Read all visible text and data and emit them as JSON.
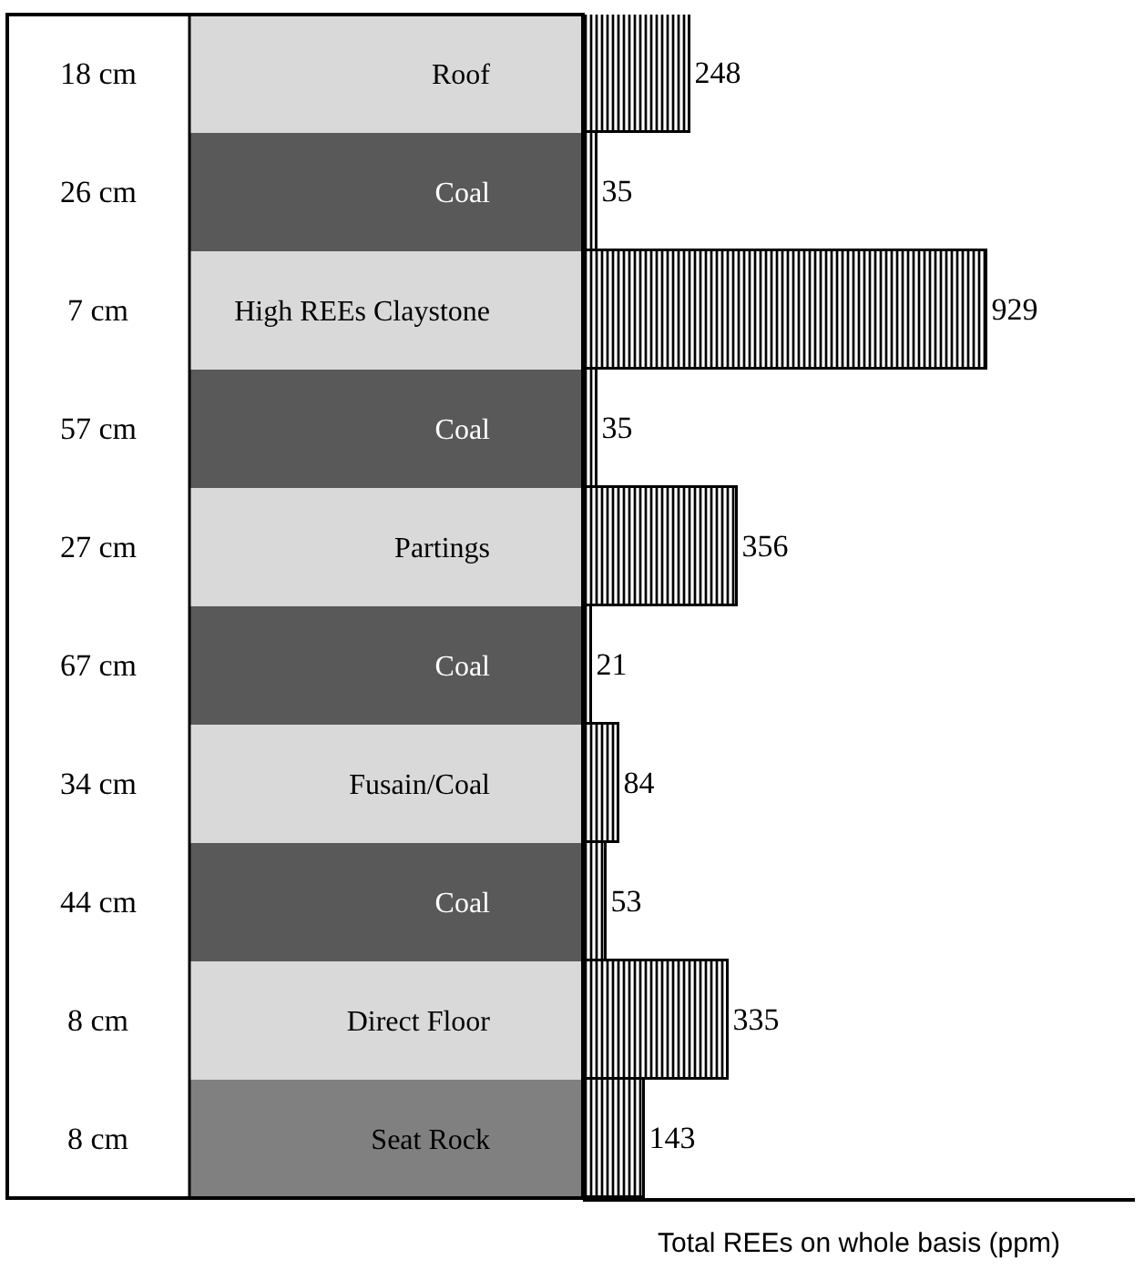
{
  "chart_data": {
    "type": "bar",
    "orientation": "horizontal",
    "categories": [
      "Roof",
      "Coal",
      "High REEs Claystone",
      "Coal",
      "Partings",
      "Coal",
      "Fusain/Coal",
      "Coal",
      "Direct Floor",
      "Seat Rock"
    ],
    "values": [
      248,
      35,
      929,
      35,
      356,
      21,
      84,
      53,
      335,
      143
    ],
    "color": "#000000",
    "data_labels": true,
    "xlim": [
      0,
      1270
    ],
    "tick_labels": "y",
    "xlabel": "Total REEs on whole basis (ppm)",
    "annotations": [
      "18 cm",
      "26 cm",
      "7 cm",
      "57 cm",
      "27 cm",
      "67 cm",
      "34 cm",
      "44 cm",
      "8 cm",
      "8 cm"
    ]
  }
}
